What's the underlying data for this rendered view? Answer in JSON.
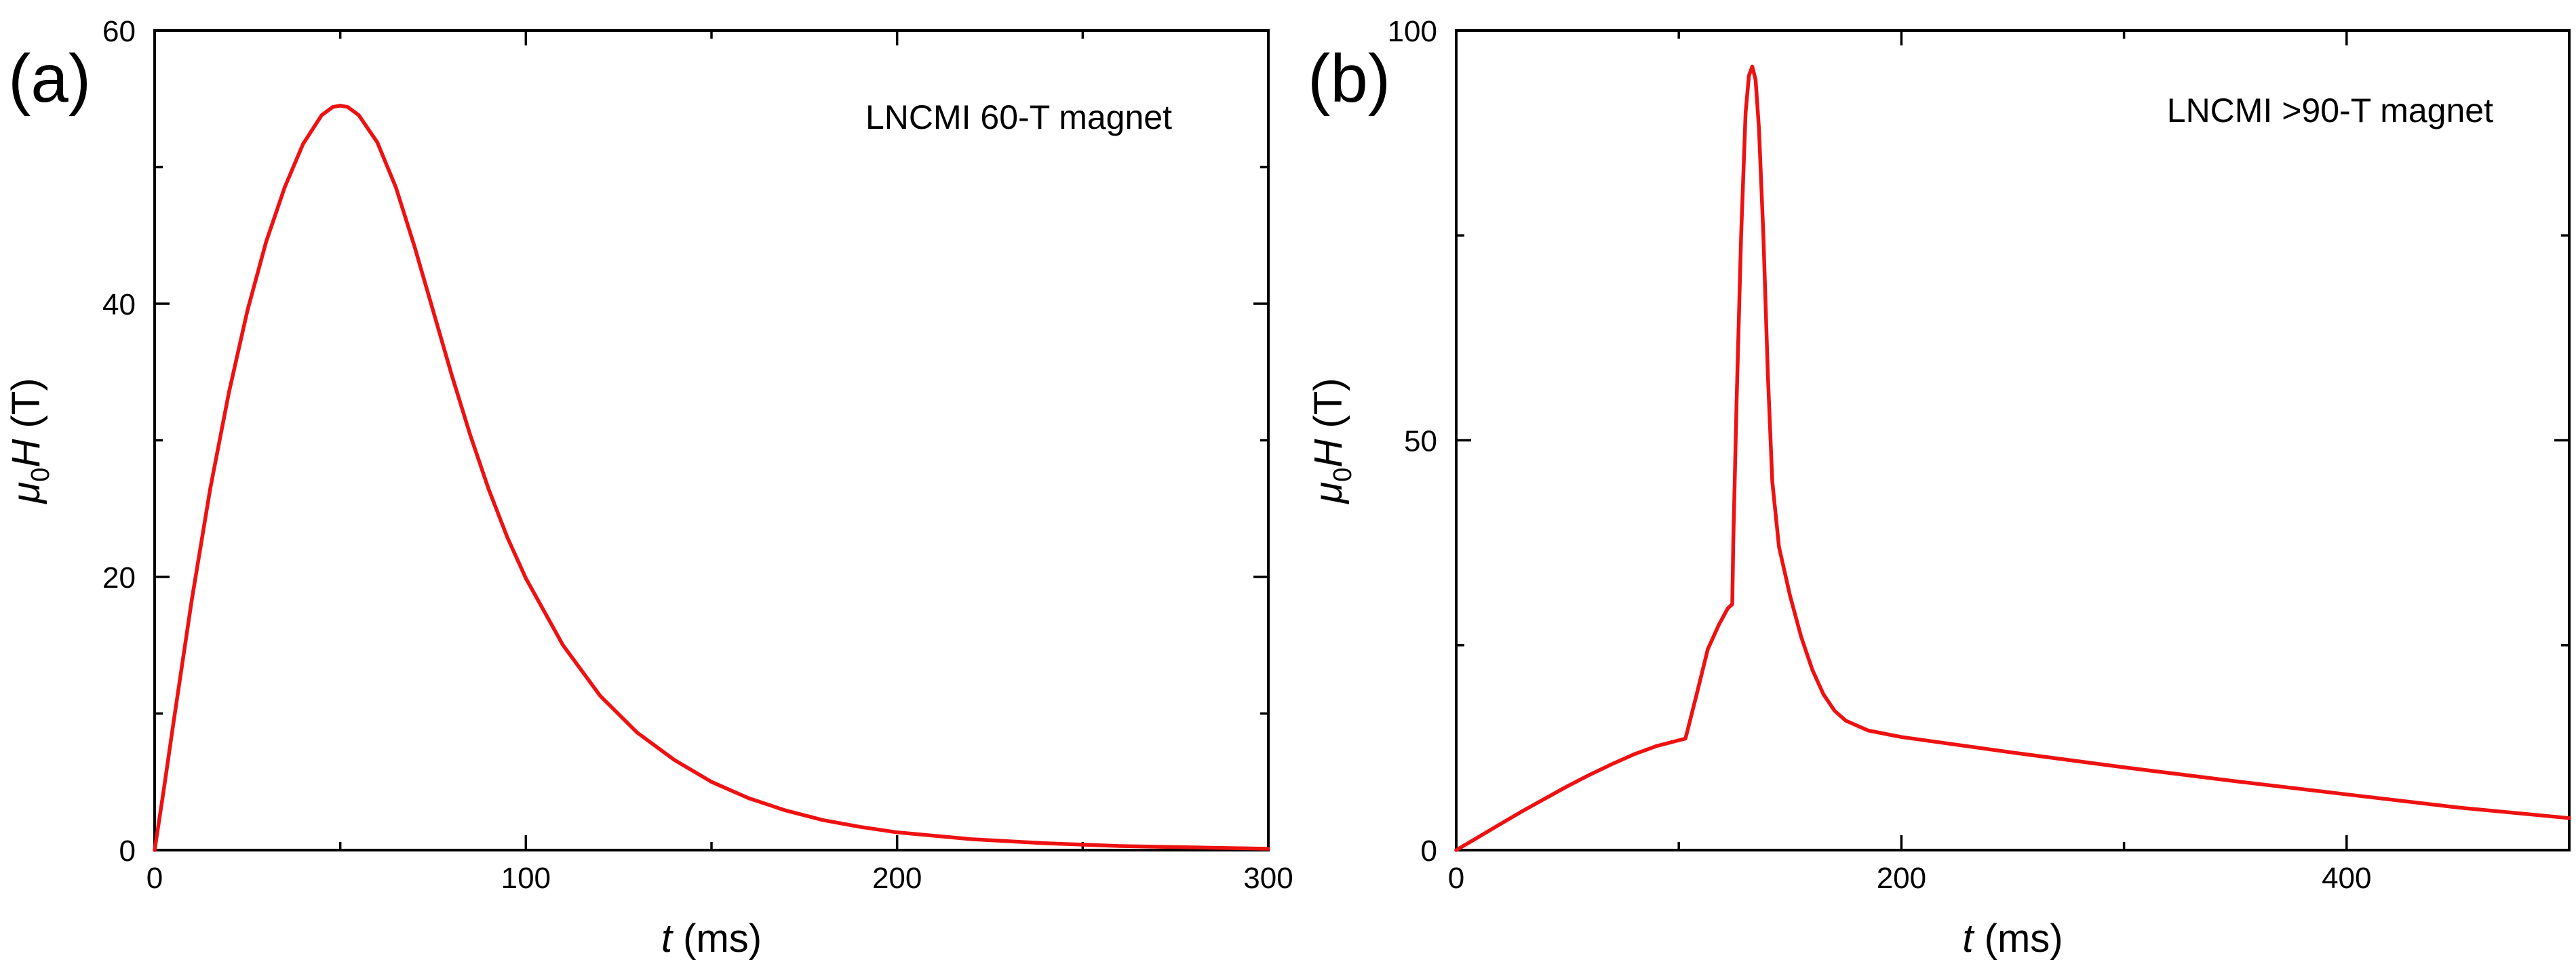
{
  "chart_data": [
    {
      "type": "line",
      "panel_label": "(a)",
      "annotation": "LNCMI 60-T magnet",
      "annotation_position": "top-right",
      "xlabel": "t",
      "xlabel_unit": "(ms)",
      "ylabel_symbol": "μ",
      "ylabel_subscript": "0",
      "ylabel_var": "H",
      "ylabel_unit": "(T)",
      "xlim": [
        0,
        300
      ],
      "ylim": [
        0,
        60
      ],
      "x_major_ticks": [
        0,
        100,
        200,
        300
      ],
      "x_tick_labels": [
        "0",
        "100",
        "200",
        "300"
      ],
      "x_minor_ticks": [
        50,
        150,
        250
      ],
      "y_major_ticks": [
        0,
        20,
        40,
        60
      ],
      "y_tick_labels": [
        "0",
        "20",
        "40",
        "60"
      ],
      "y_minor_ticks": [
        10,
        30,
        50
      ],
      "grid": false,
      "series": [
        {
          "name": "LNCMI 60-T magnet",
          "color": "#ee1111",
          "points": [
            [
              0,
              0
            ],
            [
              2.5,
              4.5
            ],
            [
              5,
              9.2
            ],
            [
              10,
              18.3
            ],
            [
              15,
              26.5
            ],
            [
              20,
              33.5
            ],
            [
              25,
              39.5
            ],
            [
              30,
              44.5
            ],
            [
              35,
              48.5
            ],
            [
              40,
              51.7
            ],
            [
              45,
              53.8
            ],
            [
              48,
              54.4
            ],
            [
              50,
              54.5
            ],
            [
              52,
              54.4
            ],
            [
              55,
              53.8
            ],
            [
              60,
              51.8
            ],
            [
              65,
              48.5
            ],
            [
              70,
              44.2
            ],
            [
              75,
              39.5
            ],
            [
              80,
              34.8
            ],
            [
              85,
              30.4
            ],
            [
              90,
              26.4
            ],
            [
              95,
              22.9
            ],
            [
              100,
              19.9
            ],
            [
              110,
              15.0
            ],
            [
              120,
              11.3
            ],
            [
              130,
              8.6
            ],
            [
              140,
              6.6
            ],
            [
              150,
              5.0
            ],
            [
              160,
              3.8
            ],
            [
              170,
              2.9
            ],
            [
              180,
              2.2
            ],
            [
              190,
              1.7
            ],
            [
              200,
              1.3
            ],
            [
              220,
              0.8
            ],
            [
              240,
              0.5
            ],
            [
              260,
              0.3
            ],
            [
              280,
              0.2
            ],
            [
              300,
              0.1
            ]
          ]
        }
      ]
    },
    {
      "type": "line",
      "panel_label": "(b)",
      "annotation": "LNCMI >90-T magnet",
      "annotation_position": "top-right",
      "xlabel": "t",
      "xlabel_unit": "(ms)",
      "ylabel_symbol": "μ",
      "ylabel_subscript": "0",
      "ylabel_var": "H",
      "ylabel_unit": "(T)",
      "xlim": [
        0,
        500
      ],
      "ylim": [
        0,
        100
      ],
      "x_major_ticks": [
        0,
        200,
        400
      ],
      "x_tick_labels": [
        "0",
        "200",
        "400"
      ],
      "x_minor_ticks": [
        100,
        300,
        500
      ],
      "y_major_ticks": [
        0,
        50,
        100
      ],
      "y_tick_labels": [
        "0",
        "50",
        "100"
      ],
      "y_minor_ticks": [
        25,
        75
      ],
      "grid": false,
      "series": [
        {
          "name": "LNCMI >90-T magnet",
          "color": "#ee1111",
          "points": [
            [
              0,
              0
            ],
            [
              10,
              1.6
            ],
            [
              20,
              3.2
            ],
            [
              30,
              4.8
            ],
            [
              40,
              6.3
            ],
            [
              50,
              7.8
            ],
            [
              60,
              9.2
            ],
            [
              70,
              10.5
            ],
            [
              80,
              11.7
            ],
            [
              90,
              12.7
            ],
            [
              100,
              13.4
            ],
            [
              103,
              13.6
            ],
            [
              108,
              19.0
            ],
            [
              113,
              24.5
            ],
            [
              118,
              27.5
            ],
            [
              122,
              29.5
            ],
            [
              124,
              30.0
            ],
            [
              124.5,
              38.0
            ],
            [
              126,
              55.0
            ],
            [
              128,
              75.0
            ],
            [
              130,
              90.0
            ],
            [
              131.5,
              94.5
            ],
            [
              133,
              95.6
            ],
            [
              134.5,
              94.0
            ],
            [
              136,
              88.0
            ],
            [
              138,
              75.0
            ],
            [
              140,
              58.0
            ],
            [
              142,
              45.0
            ],
            [
              145,
              37.0
            ],
            [
              150,
              31.0
            ],
            [
              155,
              26.0
            ],
            [
              160,
              22.0
            ],
            [
              165,
              19.0
            ],
            [
              170,
              17.0
            ],
            [
              175,
              15.8
            ],
            [
              185,
              14.6
            ],
            [
              200,
              13.8
            ],
            [
              250,
              11.9
            ],
            [
              300,
              10.1
            ],
            [
              350,
              8.4
            ],
            [
              400,
              6.8
            ],
            [
              450,
              5.2
            ],
            [
              500,
              3.9
            ]
          ]
        }
      ]
    }
  ]
}
